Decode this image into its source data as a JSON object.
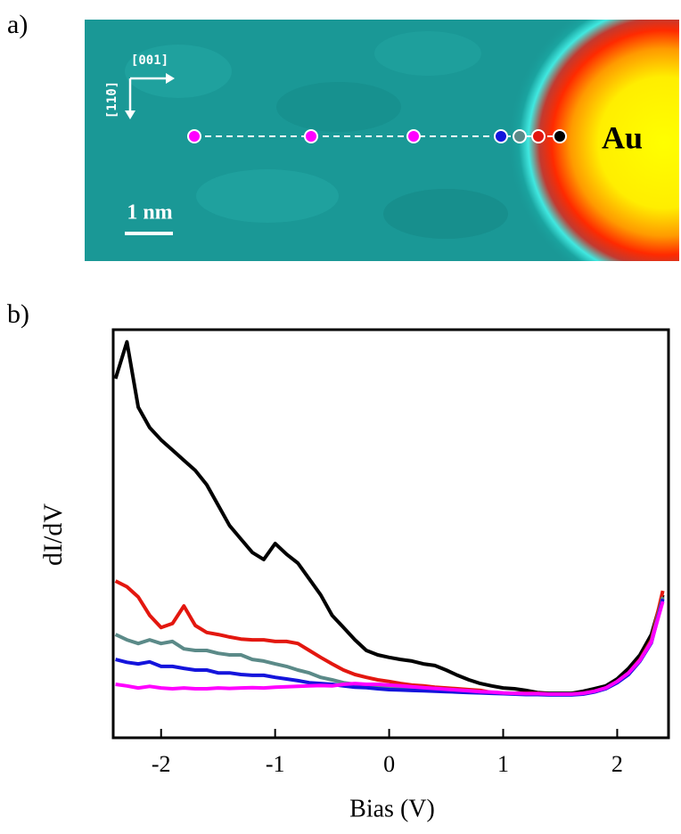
{
  "panel_a": {
    "label": "a)",
    "direction_labels": [
      "[001]",
      "[11̄0]"
    ],
    "scale_bar": "1 nm",
    "element": "Au"
  },
  "panel_b": {
    "label": "b)"
  },
  "chart_data": {
    "type": "line",
    "x_label": "Bias (V)",
    "y_label": "dI/dV",
    "x": [
      -2.4,
      -2.3,
      -2.2,
      -2.1,
      -2.0,
      -1.9,
      -1.8,
      -1.7,
      -1.6,
      -1.5,
      -1.4,
      -1.3,
      -1.2,
      -1.1,
      -1.0,
      -0.9,
      -0.8,
      -0.7,
      -0.6,
      -0.5,
      -0.4,
      -0.3,
      -0.2,
      -0.1,
      0,
      0.1,
      0.2,
      0.3,
      0.4,
      0.5,
      0.6,
      0.7,
      0.8,
      0.9,
      1.0,
      1.1,
      1.2,
      1.3,
      1.4,
      1.5,
      1.6,
      1.7,
      1.8,
      1.9,
      2.0,
      2.1,
      2.2,
      2.3,
      2.4
    ],
    "series": [
      {
        "color": "#000000",
        "values": [
          88,
          97,
          81,
          76,
          73,
          70.5,
          68,
          65.5,
          62,
          57,
          52,
          48.7,
          45.4,
          43.7,
          47.6,
          45,
          42.8,
          38.9,
          35,
          30,
          27,
          24,
          21.4,
          20.3,
          19.7,
          19.2,
          18.8,
          18.1,
          17.7,
          16.6,
          15.3,
          14.2,
          13.3,
          12.7,
          12.2,
          12,
          11.6,
          11.1,
          10.9,
          10.9,
          10.9,
          11.4,
          12,
          12.7,
          14.4,
          17,
          20.3,
          25.3,
          35
        ]
      },
      {
        "color": "#e3170f",
        "values": [
          38.4,
          37,
          34.5,
          30,
          27,
          28,
          32.3,
          27.5,
          25.8,
          25.3,
          24.7,
          24.2,
          24,
          24,
          23.6,
          23.6,
          23.1,
          21.4,
          19.7,
          18.1,
          16.6,
          15.5,
          14.8,
          14.2,
          13.8,
          13.3,
          12.9,
          12.7,
          12.4,
          12.2,
          12,
          11.8,
          11.6,
          11.1,
          10.9,
          10.9,
          10.9,
          10.9,
          10.7,
          10.7,
          10.7,
          10.9,
          11.4,
          12.2,
          13.8,
          15.9,
          19.2,
          24,
          36
        ]
      },
      {
        "color": "#5b8a88",
        "values": [
          25.3,
          24,
          23.1,
          24,
          23.1,
          23.6,
          21.8,
          21.4,
          21.4,
          20.7,
          20.3,
          20.3,
          19.2,
          18.8,
          18.1,
          17.5,
          16.6,
          15.9,
          14.8,
          14.2,
          13.5,
          13.1,
          12.7,
          12.5,
          12.2,
          12,
          11.8,
          11.6,
          11.5,
          11.4,
          11.3,
          11.2,
          11.1,
          11,
          10.9,
          10.8,
          10.8,
          10.7,
          10.7,
          10.6,
          10.6,
          10.8,
          11.3,
          12.1,
          13.6,
          15.7,
          19,
          23.6,
          34.5
        ]
      },
      {
        "color": "#1414dc",
        "values": [
          19.2,
          18.5,
          18.1,
          18.6,
          17.5,
          17.5,
          17,
          16.6,
          16.6,
          15.9,
          15.9,
          15.5,
          15.3,
          15.3,
          14.8,
          14.4,
          14,
          13.5,
          13.3,
          13.1,
          12.7,
          12.4,
          12.3,
          12,
          11.8,
          11.7,
          11.6,
          11.5,
          11.4,
          11.3,
          11.2,
          11.1,
          11,
          10.9,
          10.8,
          10.7,
          10.6,
          10.6,
          10.5,
          10.5,
          10.5,
          10.7,
          11.2,
          12,
          13.5,
          15.5,
          18.8,
          23.3,
          34
        ]
      },
      {
        "color": "#ff00ff",
        "values": [
          13.1,
          12.7,
          12.2,
          12.6,
          12.2,
          12,
          12.2,
          12,
          12,
          12.2,
          12.1,
          12.2,
          12.3,
          12.2,
          12.4,
          12.5,
          12.6,
          12.7,
          12.8,
          12.7,
          13.1,
          13.3,
          13.1,
          13.1,
          12.9,
          12.7,
          12.5,
          12.3,
          12.1,
          11.9,
          11.7,
          11.5,
          11.3,
          11.2,
          11,
          10.9,
          10.8,
          10.8,
          10.7,
          10.7,
          10.7,
          10.9,
          11.4,
          12.2,
          13.8,
          15.9,
          19,
          23.5,
          33.4
        ]
      }
    ],
    "xlim": [
      -2.42,
      2.45
    ],
    "xticks": [
      -2,
      -1,
      0,
      1,
      2
    ],
    "ylim": [
      0,
      100
    ]
  }
}
